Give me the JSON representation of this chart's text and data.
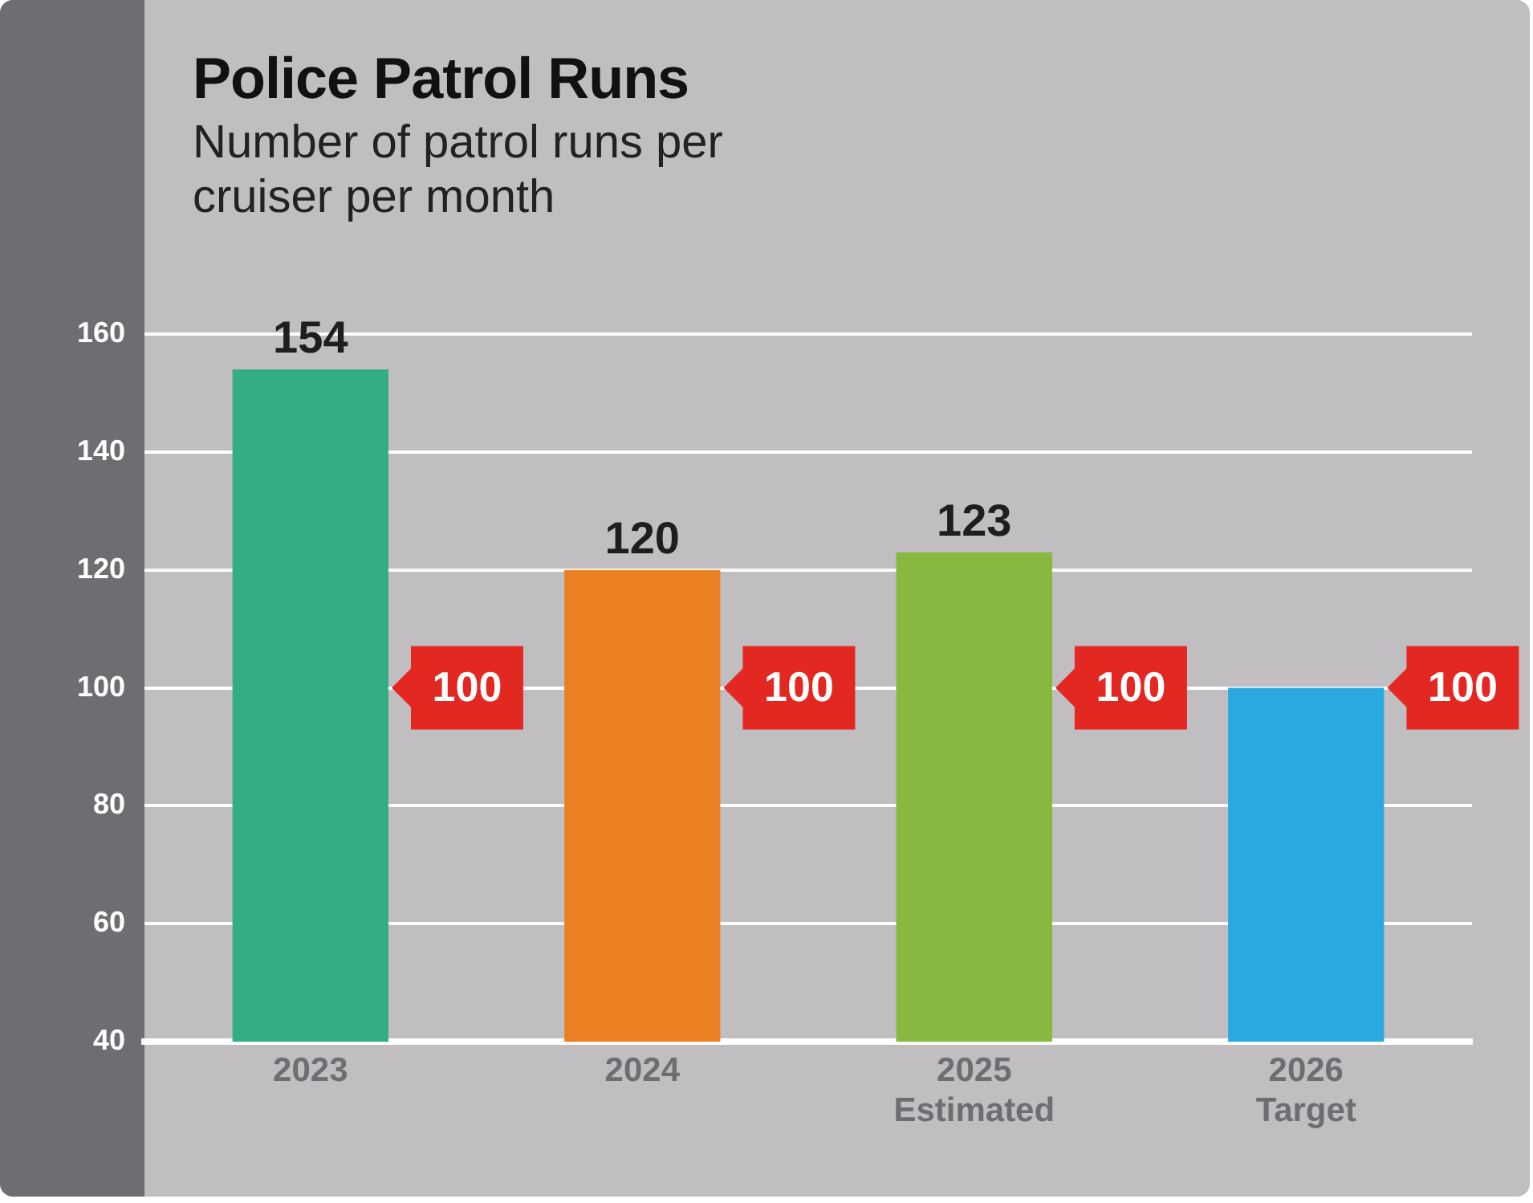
{
  "chart_data": {
    "type": "bar",
    "title": "Police Patrol Runs",
    "subtitle": "Number of patrol runs per cruiser per month",
    "categories": [
      "2023",
      "2024",
      "2025 Estimated",
      "2026 Target"
    ],
    "series": [
      {
        "type": "bar",
        "colors": [
          "#33ad84",
          "#eb8023",
          "#88b840",
          "#2aa9e1"
        ],
        "values": [
          154,
          120,
          123,
          100
        ],
        "value_labels": [
          "154",
          "120",
          "123",
          null
        ]
      }
    ],
    "annotations": [
      "100",
      "100",
      "100",
      "100"
    ],
    "ylim": [
      40,
      160
    ],
    "yticks": [
      40,
      60,
      80,
      100,
      120,
      140,
      160
    ],
    "grid": "y",
    "legend": false
  }
}
